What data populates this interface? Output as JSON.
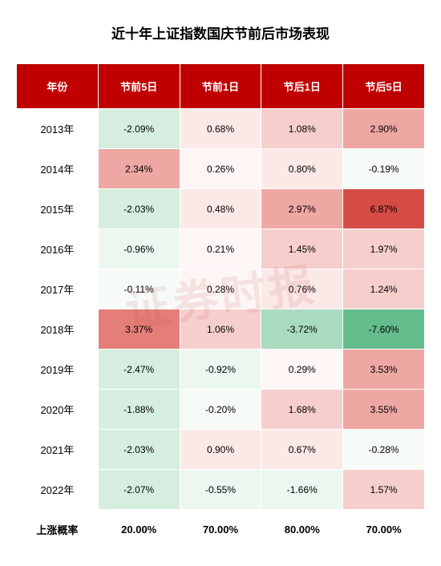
{
  "title": "近十年上证指数国庆节前后市场表现",
  "watermark": "证券时报",
  "table": {
    "columns": [
      "年份",
      "节前5日",
      "节前1日",
      "节后1日",
      "节后5日"
    ],
    "col_widths": [
      "20%",
      "20%",
      "20%",
      "20%",
      "20%"
    ],
    "header_bg": "#c00000",
    "header_color": "#ffffff",
    "colors": {
      "deep_green": "#64bd8c",
      "mid_green": "#a8dbc0",
      "light_green": "#d5eedf",
      "pale_green": "#ecf7f0",
      "near_white_g": "#f6fbf8",
      "white": "#fefdfd",
      "near_white_r": "#fdf6f5",
      "pale_red": "#fbe9e8",
      "light_red": "#f6cfcd",
      "mid_red": "#eea7a3",
      "strong_red": "#e57e78",
      "deep_red": "#d44c44"
    },
    "rows": [
      {
        "year": "2013年",
        "cells": [
          {
            "v": "-2.09%",
            "c": "light_green"
          },
          {
            "v": "0.68%",
            "c": "pale_red"
          },
          {
            "v": "1.08%",
            "c": "light_red"
          },
          {
            "v": "2.90%",
            "c": "mid_red"
          }
        ]
      },
      {
        "year": "2014年",
        "cells": [
          {
            "v": "2.34%",
            "c": "mid_red"
          },
          {
            "v": "0.26%",
            "c": "near_white_r"
          },
          {
            "v": "0.80%",
            "c": "pale_red"
          },
          {
            "v": "-0.19%",
            "c": "near_white_g"
          }
        ]
      },
      {
        "year": "2015年",
        "cells": [
          {
            "v": "-2.03%",
            "c": "light_green"
          },
          {
            "v": "0.48%",
            "c": "pale_red"
          },
          {
            "v": "2.97%",
            "c": "mid_red"
          },
          {
            "v": "6.87%",
            "c": "deep_red"
          }
        ]
      },
      {
        "year": "2016年",
        "cells": [
          {
            "v": "-0.96%",
            "c": "pale_green"
          },
          {
            "v": "0.21%",
            "c": "near_white_r"
          },
          {
            "v": "1.45%",
            "c": "light_red"
          },
          {
            "v": "1.97%",
            "c": "light_red"
          }
        ]
      },
      {
        "year": "2017年",
        "cells": [
          {
            "v": "-0.11%",
            "c": "near_white_g"
          },
          {
            "v": "0.28%",
            "c": "near_white_r"
          },
          {
            "v": "0.76%",
            "c": "pale_red"
          },
          {
            "v": "1.24%",
            "c": "light_red"
          }
        ]
      },
      {
        "year": "2018年",
        "cells": [
          {
            "v": "3.37%",
            "c": "strong_red"
          },
          {
            "v": "1.06%",
            "c": "light_red"
          },
          {
            "v": "-3.72%",
            "c": "mid_green"
          },
          {
            "v": "-7.60%",
            "c": "deep_green"
          }
        ]
      },
      {
        "year": "2019年",
        "cells": [
          {
            "v": "-2.47%",
            "c": "light_green"
          },
          {
            "v": "-0.92%",
            "c": "pale_green"
          },
          {
            "v": "0.29%",
            "c": "near_white_r"
          },
          {
            "v": "3.53%",
            "c": "mid_red"
          }
        ]
      },
      {
        "year": "2020年",
        "cells": [
          {
            "v": "-1.88%",
            "c": "light_green"
          },
          {
            "v": "-0.20%",
            "c": "near_white_g"
          },
          {
            "v": "1.68%",
            "c": "light_red"
          },
          {
            "v": "3.55%",
            "c": "mid_red"
          }
        ]
      },
      {
        "year": "2021年",
        "cells": [
          {
            "v": "-2.03%",
            "c": "light_green"
          },
          {
            "v": "0.90%",
            "c": "pale_red"
          },
          {
            "v": "0.67%",
            "c": "pale_red"
          },
          {
            "v": "-0.28%",
            "c": "near_white_g"
          }
        ]
      },
      {
        "year": "2022年",
        "cells": [
          {
            "v": "-2.07%",
            "c": "light_green"
          },
          {
            "v": "-0.55%",
            "c": "pale_green"
          },
          {
            "v": "-1.66%",
            "c": "pale_green"
          },
          {
            "v": "1.57%",
            "c": "light_red"
          }
        ]
      }
    ],
    "summary": {
      "label": "上涨概率",
      "values": [
        "20.00%",
        "70.00%",
        "80.00%",
        "70.00%"
      ]
    }
  }
}
